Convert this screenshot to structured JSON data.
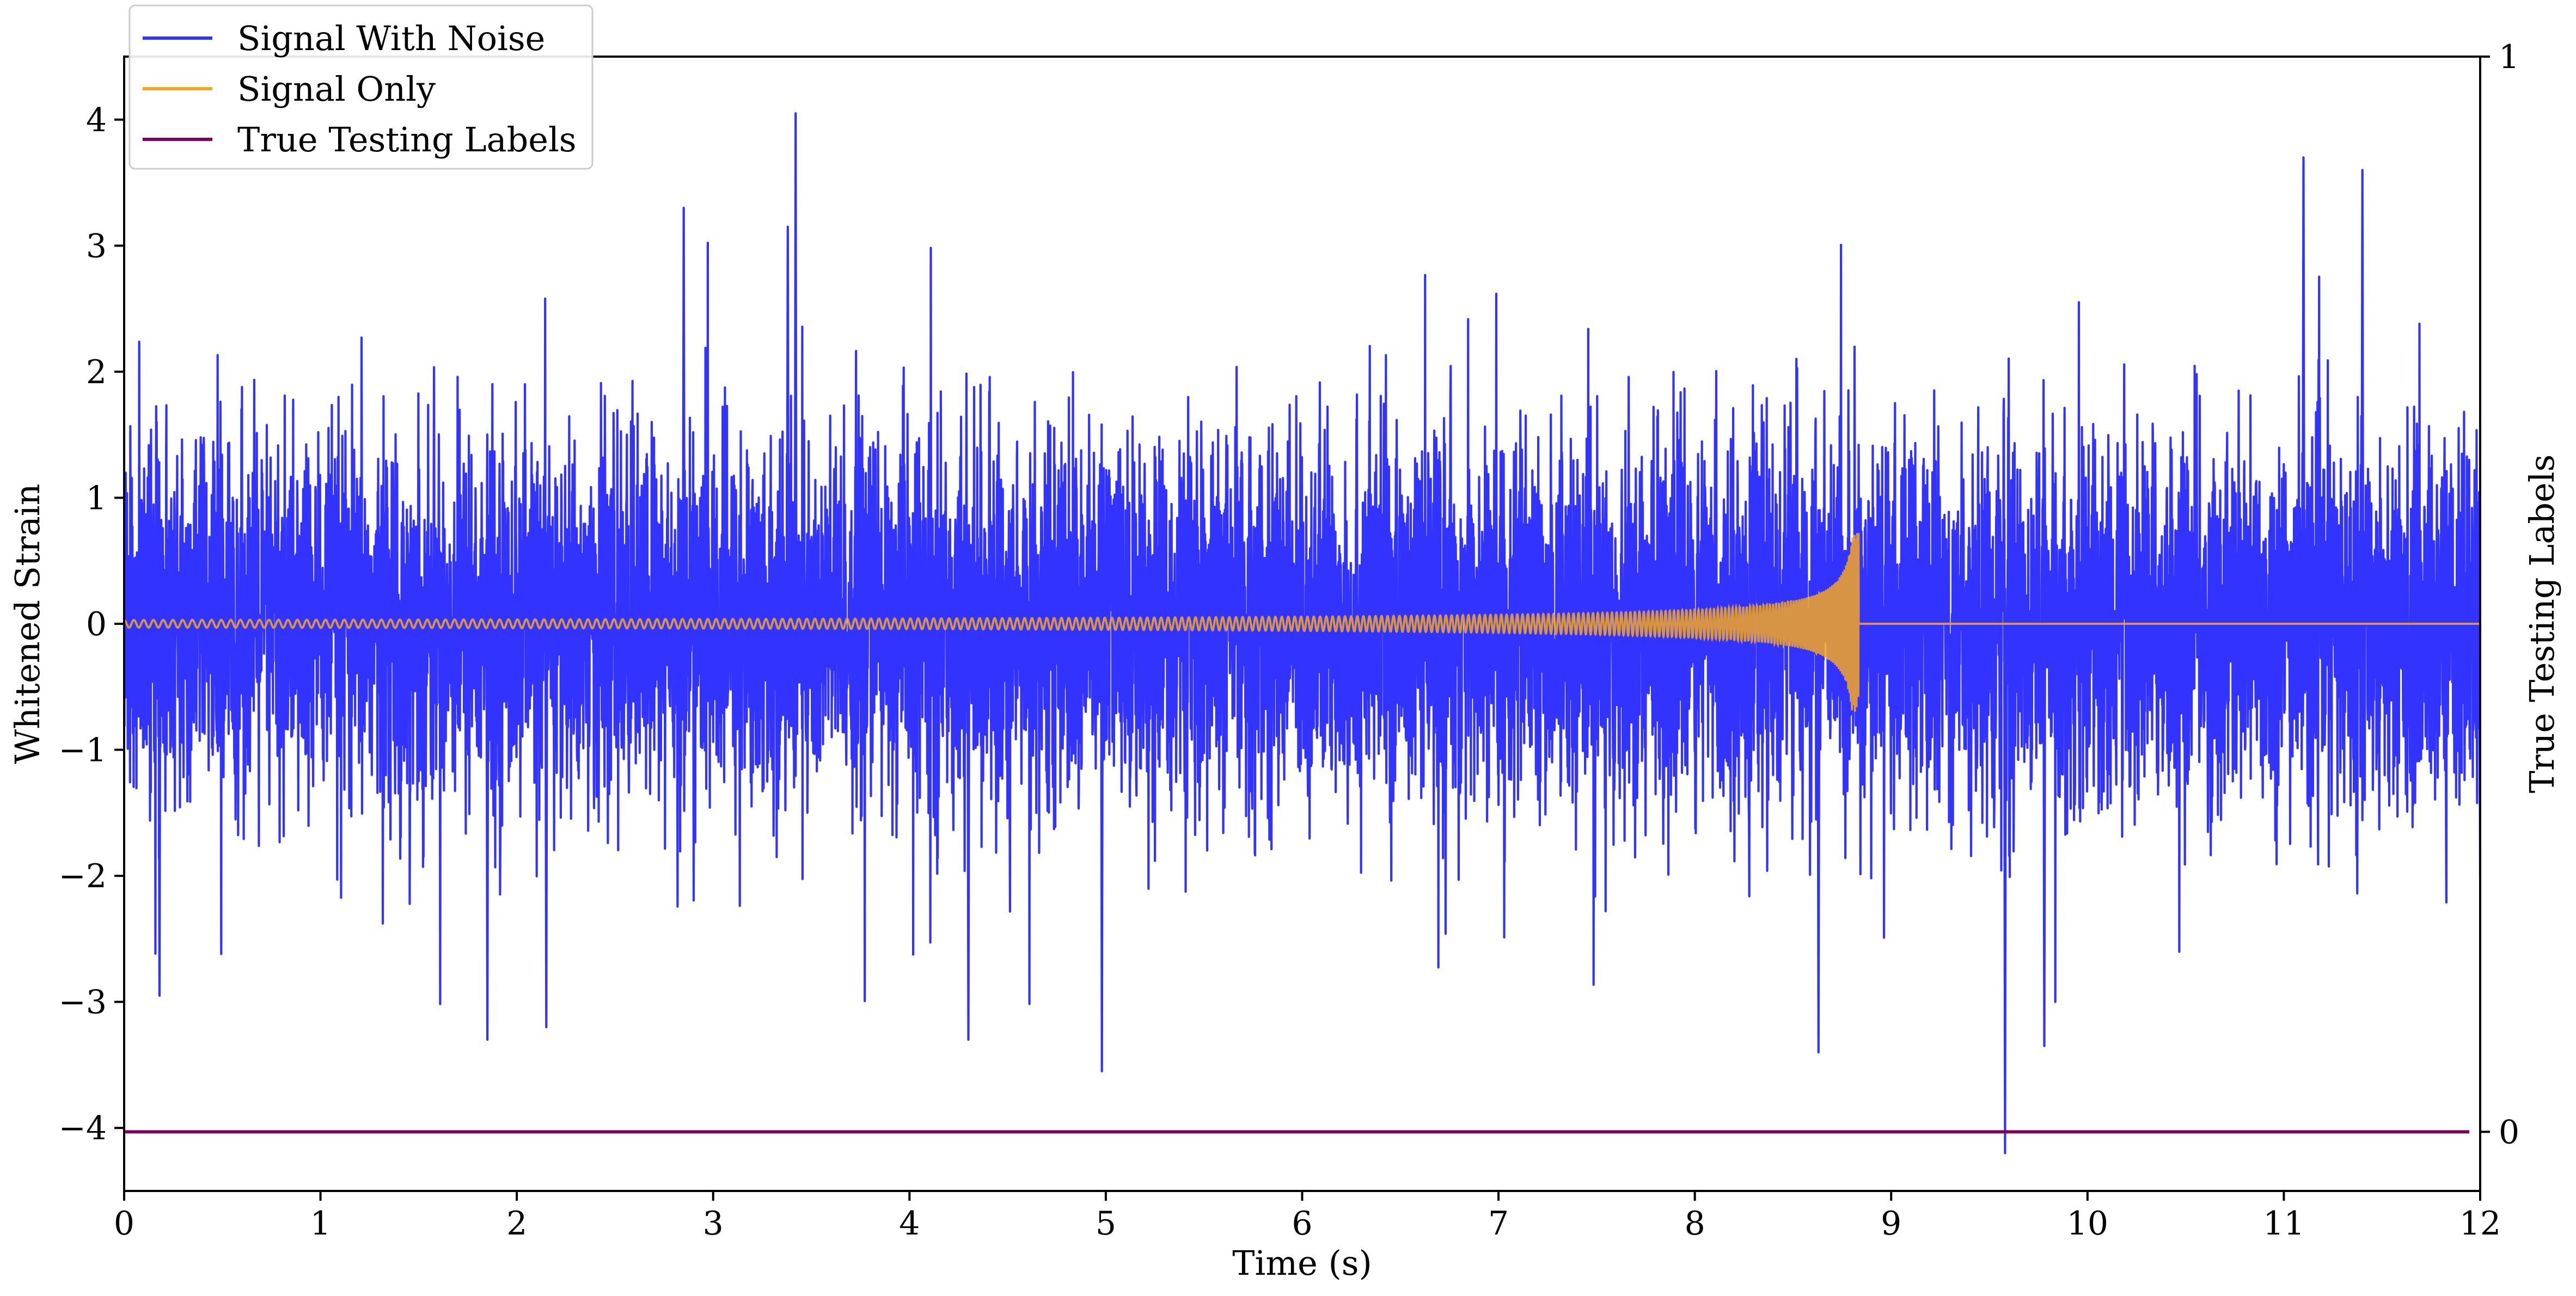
{
  "chart_data": {
    "type": "line",
    "xlabel": "Time (s)",
    "ylabel": "Whitened Strain",
    "ylabel_right": "True Testing Labels",
    "xlim": [
      0,
      12
    ],
    "ylim": [
      -4.5,
      4.5
    ],
    "ylim_right": [
      -0.055,
      1.0
    ],
    "x_ticks": [
      "0",
      "1",
      "2",
      "3",
      "4",
      "5",
      "6",
      "7",
      "8",
      "9",
      "10",
      "11",
      "12"
    ],
    "y_ticks": [
      "−4",
      "−3",
      "−2",
      "−1",
      "0",
      "1",
      "2",
      "3",
      "4"
    ],
    "y_right_ticks": [
      "0",
      "1"
    ],
    "legend": {
      "placement": "upper-left",
      "entries": [
        "Signal With Noise",
        "Signal Only",
        "True Testing Labels"
      ]
    },
    "series": [
      {
        "name": "Signal With Noise",
        "color": "#3333ff",
        "description": "whitened noise around 0, typical amplitude ±2, outliers reaching ±4",
        "peaks": [
          {
            "x": 3.42,
            "y": 4.05
          },
          {
            "x": 3.38,
            "y": 3.15
          },
          {
            "x": 2.85,
            "y": 3.3
          },
          {
            "x": 11.1,
            "y": 3.7
          },
          {
            "x": 11.4,
            "y": 3.6
          },
          {
            "x": 9.58,
            "y": -4.2
          },
          {
            "x": 4.98,
            "y": -3.55
          },
          {
            "x": 8.63,
            "y": -3.4
          },
          {
            "x": 9.78,
            "y": -3.35
          },
          {
            "x": 4.3,
            "y": -3.3
          },
          {
            "x": 1.85,
            "y": -3.3
          },
          {
            "x": 2.15,
            "y": -3.2
          },
          {
            "x": 0.18,
            "y": -2.95
          },
          {
            "x": 12.0,
            "y": -2.0
          }
        ]
      },
      {
        "name": "Signal Only",
        "color": "#f5a623",
        "description": "chirp signal growing in amplitude and frequency, merging near 8.83 s",
        "chirp_start_x": 0,
        "merger_x": 8.83,
        "start_amplitude": 0.03,
        "peak_upper": 0.72,
        "peak_lower": -0.58,
        "after_merger": 0
      },
      {
        "name": "True Testing Labels",
        "color": "#800060",
        "axis": "right",
        "x": [
          0,
          12
        ],
        "values": [
          0,
          0
        ]
      }
    ]
  }
}
